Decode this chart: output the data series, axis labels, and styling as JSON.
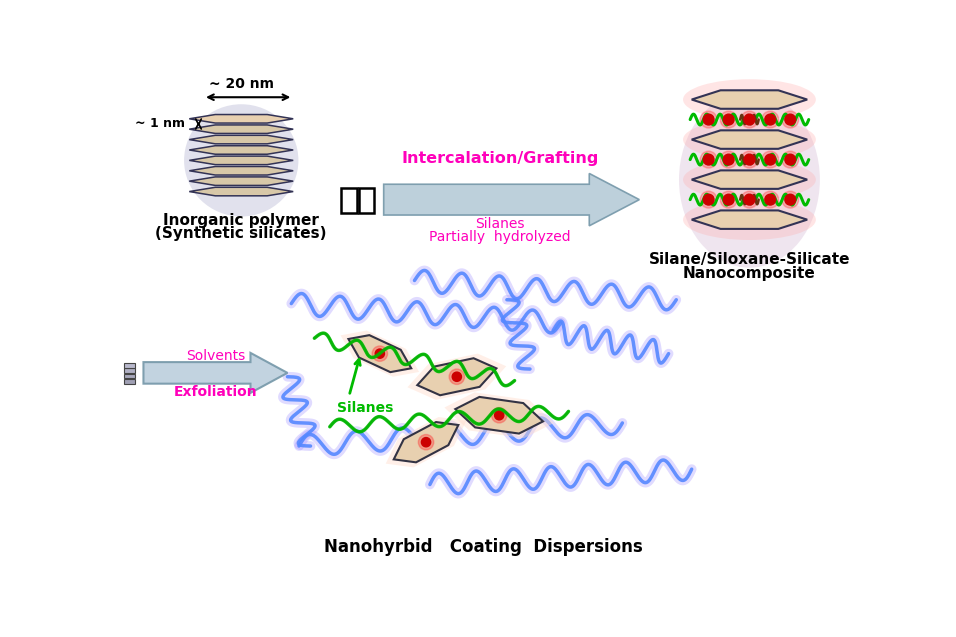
{
  "bg_color": "#ffffff",
  "text_inorganic_1": "Inorganic polymer",
  "text_inorganic_2": "(Synthetic silicates)",
  "text_20nm": "~ 20 nm",
  "text_1nm": "~ 1 nm",
  "text_intercalation": "Intercalation/Grafting",
  "text_partially": "Partially  hydrolyzed",
  "text_silanes_bottom": "Silanes",
  "text_silanes_label": "Silanes",
  "text_exfoliation": "Exfoliation",
  "text_solvents": "Solvents",
  "text_nanocomposite_1": "Silane/Siloxane-Silicate",
  "text_nanocomposite_2": "Nanocomposite",
  "text_nanohybrid": "Nanohyrbid   Coating  Dispersions",
  "color_magenta": "#FF00BB",
  "color_green": "#00BB00",
  "color_blue": "#5588FF",
  "color_red": "#CC0000",
  "color_platelet_fill": "#E8D0B0",
  "color_platelet_edge": "#333355",
  "color_platelet_glow": "#BBBBDD"
}
